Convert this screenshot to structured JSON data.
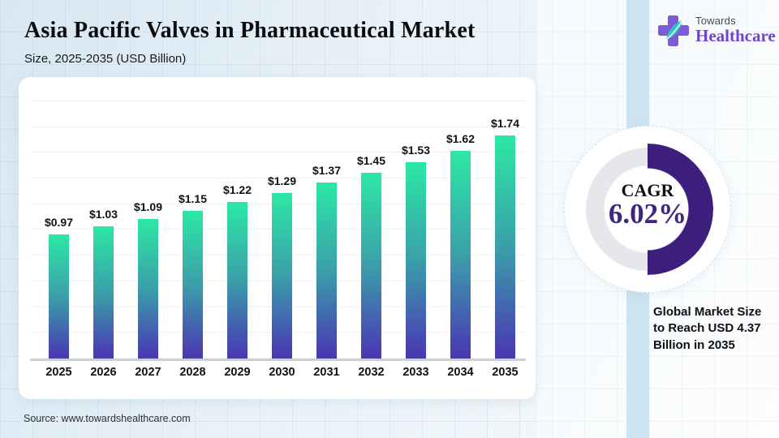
{
  "header": {
    "title": "Asia Pacific Valves in Pharmaceutical Market",
    "subtitle": "Size, 2025-2035 (USD Billion)"
  },
  "logo": {
    "brand_top": "Towards",
    "brand_bottom": "Healthcare",
    "cross_color": "#7d5bd6",
    "leaf_color": "#2fc8c0"
  },
  "chart_data": [
    {
      "type": "bar",
      "title": "Asia Pacific Valves in Pharmaceutical Market",
      "subtitle": "Size, 2025-2035 (USD Billion)",
      "unit": "USD Billion",
      "categories": [
        "2025",
        "2026",
        "2027",
        "2028",
        "2029",
        "2030",
        "2031",
        "2032",
        "2033",
        "2034",
        "2035"
      ],
      "values": [
        0.97,
        1.03,
        1.09,
        1.15,
        1.22,
        1.29,
        1.37,
        1.45,
        1.53,
        1.62,
        1.74
      ],
      "labels": [
        "$0.97",
        "$1.03",
        "$1.09",
        "$1.15",
        "$1.22",
        "$1.29",
        "$1.37",
        "$1.45",
        "$1.53",
        "$1.62",
        "$1.74"
      ],
      "ylim": [
        0,
        1.9
      ],
      "grid": true,
      "legend": false,
      "bar_gradient": [
        "#2ce8a5",
        "#3b9faa",
        "#4a35b4"
      ]
    },
    {
      "type": "donut",
      "label": "CAGR",
      "value": "6.02%",
      "shown_arc_fraction": 0.5,
      "arc_color": "#3d1e7d",
      "track_color": "#e7e6ea",
      "value_color": "#42257f"
    }
  ],
  "callout": {
    "text": "Global Market Size to Reach USD 4.37 Billion in 2035"
  },
  "footer": {
    "source": "Source: www.towardshealthcare.com"
  }
}
